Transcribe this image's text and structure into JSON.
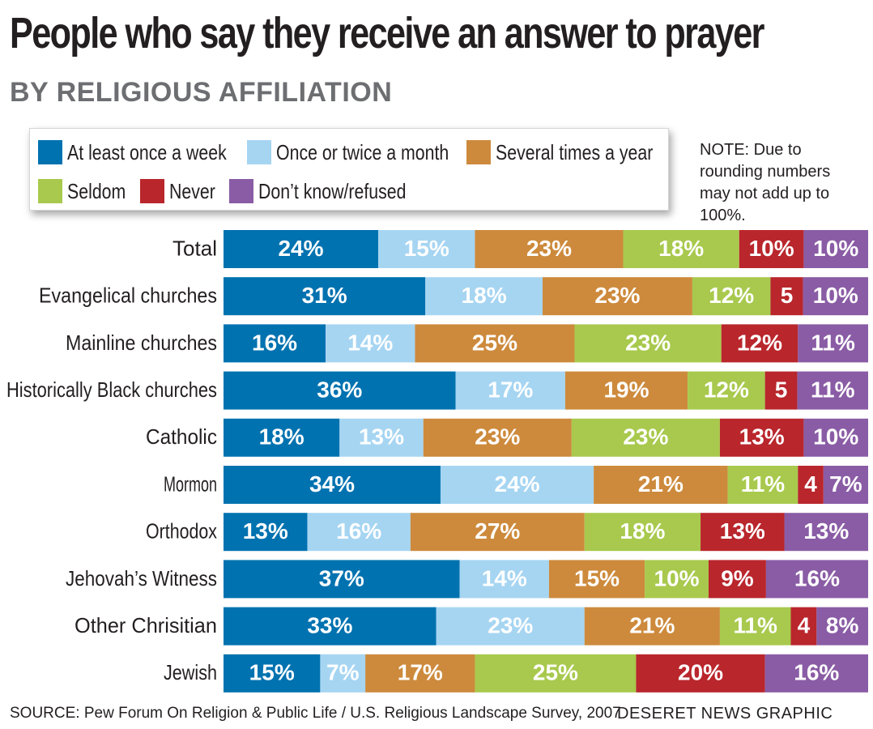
{
  "header": {
    "title": "People who say they receive an answer to prayer",
    "subtitle": "BY RELIGIOUS AFFILIATION"
  },
  "legend": {
    "items": [
      {
        "label": "At least once a week",
        "color": "#0072b0"
      },
      {
        "label": "Once or twice a month",
        "color": "#a6d5f2"
      },
      {
        "label": "Several times a year",
        "color": "#cd8a3c"
      },
      {
        "label": "Seldom",
        "color": "#a8c94d"
      },
      {
        "label": "Never",
        "color": "#b9262c"
      },
      {
        "label": "Don’t know/refused",
        "color": "#8a5ca5"
      }
    ]
  },
  "note": "NOTE: Due to rounding numbers may not add up to 100%.",
  "footer": {
    "source": "SOURCE: Pew Forum On Religion & Public Life / U.S. Religious Landscape Survey, 2007",
    "credit": "DESERET NEWS GRAPHIC"
  },
  "chart_data": {
    "type": "bar",
    "orientation": "horizontal",
    "stacked": true,
    "title": "People who say they receive an answer to prayer",
    "subtitle": "BY RELIGIOUS AFFILIATION",
    "categories": [
      "Total",
      "Evangelical churches",
      "Mainline churches",
      "Historically Black churches",
      "Catholic",
      "Mormon",
      "Orthodox",
      "Jehovah’s Witness",
      "Other Chrisitian",
      "Jewish"
    ],
    "series": [
      {
        "name": "At least once a week",
        "color": "#0072b0",
        "values": [
          24,
          31,
          16,
          36,
          18,
          34,
          13,
          37,
          33,
          15
        ],
        "labels": [
          "24%",
          "31%",
          "16%",
          "36%",
          "18%",
          "34%",
          "13%",
          "37%",
          "33%",
          "15%"
        ]
      },
      {
        "name": "Once or twice a month",
        "color": "#a6d5f2",
        "values": [
          15,
          18,
          14,
          17,
          13,
          24,
          16,
          14,
          23,
          7
        ],
        "labels": [
          "15%",
          "18%",
          "14%",
          "17%",
          "13%",
          "24%",
          "16%",
          "14%",
          "23%",
          "7%"
        ]
      },
      {
        "name": "Several times a year",
        "color": "#cd8a3c",
        "values": [
          23,
          23,
          25,
          19,
          23,
          21,
          27,
          15,
          21,
          17
        ],
        "labels": [
          "23%",
          "23%",
          "25%",
          "19%",
          "23%",
          "21%",
          "27%",
          "15%",
          "21%",
          "17%"
        ]
      },
      {
        "name": "Seldom",
        "color": "#a8c94d",
        "values": [
          18,
          12,
          23,
          12,
          23,
          11,
          18,
          10,
          11,
          25
        ],
        "labels": [
          "18%",
          "12%",
          "23%",
          "12%",
          "23%",
          "11%",
          "18%",
          "10%",
          "11%",
          "25%"
        ]
      },
      {
        "name": "Never",
        "color": "#b9262c",
        "values": [
          10,
          5,
          12,
          5,
          13,
          4,
          13,
          9,
          4,
          20
        ],
        "labels": [
          "10%",
          "5",
          "12%",
          "5",
          "13%",
          "4",
          "13%",
          "9%",
          "4",
          "20%"
        ]
      },
      {
        "name": "Don’t know/refused",
        "color": "#8a5ca5",
        "values": [
          10,
          10,
          11,
          11,
          10,
          7,
          13,
          16,
          8,
          16
        ],
        "labels": [
          "10%",
          "10%",
          "11%",
          "11%",
          "10%",
          "7%",
          "13%",
          "16%",
          "8%",
          "16%"
        ]
      }
    ],
    "xlim": [
      0,
      100
    ],
    "grid": false,
    "legend_position": "top",
    "xlabel": "",
    "ylabel": ""
  }
}
